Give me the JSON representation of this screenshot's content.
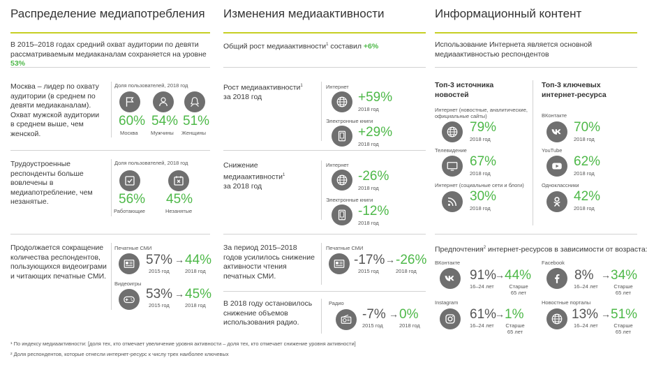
{
  "headers": {
    "col1": "Распределение медиапотребления",
    "col2": "Изменения медиаактивности",
    "col3": "Информационный контент"
  },
  "col1": {
    "intro": "В 2015–2018 годах средний охват аудитории по девяти рассматриваемым медиаканалам сохраняется на уровне",
    "intro_value": "53%",
    "block1": {
      "text": "Москва – лидер по охвату аудитории (в среднем по девяти медиаканалам). Охват мужской аудитории в среднем выше, чем женской.",
      "caption": "Доля пользователей, 2018 год",
      "items": [
        {
          "icon": "flag-icon",
          "value": "60%",
          "label": "Москва"
        },
        {
          "icon": "male-icon",
          "value": "54%",
          "label": "Мужчины"
        },
        {
          "icon": "female-icon",
          "value": "51%",
          "label": "Женщины"
        }
      ]
    },
    "block2": {
      "text": "Трудоустроенные респонденты больше вовлечены в медиапотребление, чем незанятые.",
      "caption": "Доля пользователей, 2018 год",
      "items": [
        {
          "icon": "checkbox-icon",
          "value": "56%",
          "label": "Работающие"
        },
        {
          "icon": "cross-calendar-icon",
          "value": "45%",
          "label": "Незанятые"
        }
      ]
    },
    "block3": {
      "text": "Продолжается сокращение количества респондентов, пользующихся видеоиграми и читающих печатные СМИ.",
      "items": [
        {
          "title": "Печатные СМИ",
          "icon": "newspaper-icon",
          "from": "57%",
          "from_label": "2015 год",
          "arrow": "→",
          "to": "44%",
          "to_label": "2018 год"
        },
        {
          "title": "Видеоигры",
          "icon": "gamepad-icon",
          "from": "53%",
          "from_label": "2015 год",
          "arrow": "→",
          "to": "45%",
          "to_label": "2018 год"
        }
      ]
    }
  },
  "col2": {
    "intro": "Общий рост медиаактивности",
    "intro_sup": "1",
    "intro_tail": " составил",
    "intro_value": "+6%",
    "block1": {
      "text": "Рост медиаактивности",
      "sup": "1",
      "text2": "за 2018 год",
      "items": [
        {
          "title": "Интернет",
          "icon": "globe-icon",
          "value": "+59%",
          "label": "2018 год"
        },
        {
          "title": "Электронные книги",
          "icon": "ebook-icon",
          "value": "+29%",
          "label": "2018 год"
        }
      ]
    },
    "block2": {
      "text": "Снижение медиаактивности",
      "sup": "1",
      "text2": "за 2018 год",
      "items": [
        {
          "title": "Интернет",
          "icon": "globe-icon",
          "value": "-26%",
          "label": "2018 год"
        },
        {
          "title": "Электронные книги",
          "icon": "ebook-icon",
          "value": "-12%",
          "label": "2018 год"
        }
      ]
    },
    "block3": {
      "text": "За период 2015–2018 годов усилилось снижение активности чтения печатных СМИ.",
      "title": "Печатные СМИ",
      "icon": "newspaper-icon",
      "from": "-17%",
      "from_label": "2015 год",
      "arrow": "→",
      "to": "-26%",
      "to_label": "2018 год"
    },
    "block4": {
      "text": "В 2018 году остановилось снижение объемов использования радио.",
      "title": "Радио",
      "icon": "radio-icon",
      "from": "-7%",
      "from_label": "2015 год",
      "arrow": "→",
      "to": "0%",
      "to_label": "2018 год"
    }
  },
  "col3": {
    "intro": "Использование Интернета является основной медиаактивностью респондентов",
    "left_title": "Топ-3 источника новостей",
    "left_items": [
      {
        "title": "Интернет (новостные, аналитические, официальные сайты)",
        "icon": "globe-icon",
        "value": "79%",
        "label": "2018 год"
      },
      {
        "title": "Телевидение",
        "icon": "tv-icon",
        "value": "67%",
        "label": "2018 год"
      },
      {
        "title": "Интернет (социальные сети и блоги)",
        "icon": "rss-icon",
        "value": "30%",
        "label": "2018 год"
      }
    ],
    "right_title": "Топ-3 ключевых интернет-ресурса",
    "right_items": [
      {
        "title": "ВКонтакте",
        "icon": "vk-icon",
        "value": "70%",
        "label": "2018 год"
      },
      {
        "title": "YouTube",
        "icon": "youtube-icon",
        "value": "62%",
        "label": "2018 год"
      },
      {
        "title": "Одноклассники",
        "icon": "ok-icon",
        "value": "42%",
        "label": "2018 год"
      }
    ],
    "pref_title": "Предпочтения",
    "pref_sup": "2",
    "pref_title_tail": " интернет-ресурсов в зависимости от возраста:",
    "pref_items": [
      {
        "title": "ВКонтакте",
        "icon": "vk-icon",
        "from": "91%",
        "from_label": "16–24 лет",
        "arrow": "→",
        "to": "44%",
        "to_label": "Старше 65 лет"
      },
      {
        "title": "Facebook",
        "icon": "facebook-icon",
        "from": "8%",
        "from_label": "16–24 лет",
        "arrow": "→",
        "to": "34%",
        "to_label": "Старше 65 лет"
      },
      {
        "title": "Instagram",
        "icon": "instagram-icon",
        "from": "61%",
        "from_label": "16–24 лет",
        "arrow": "→",
        "to": "1%",
        "to_label": "Старше 65 лет"
      },
      {
        "title": "Новостные порталы",
        "icon": "globe-icon",
        "from": "13%",
        "from_label": "16–24 лет",
        "arrow": "→",
        "to": "51%",
        "to_label": "Старше 65 лет"
      }
    ]
  },
  "footnotes": [
    "¹ По индексу медиаактивности: [доля тех, кто отмечает увеличение уровня активности – доля тех, кто отмечает снижение уровня активности]",
    "² Доля респондентов, которые отнесли интернет-ресурс к числу трех наиболее ключевых"
  ]
}
